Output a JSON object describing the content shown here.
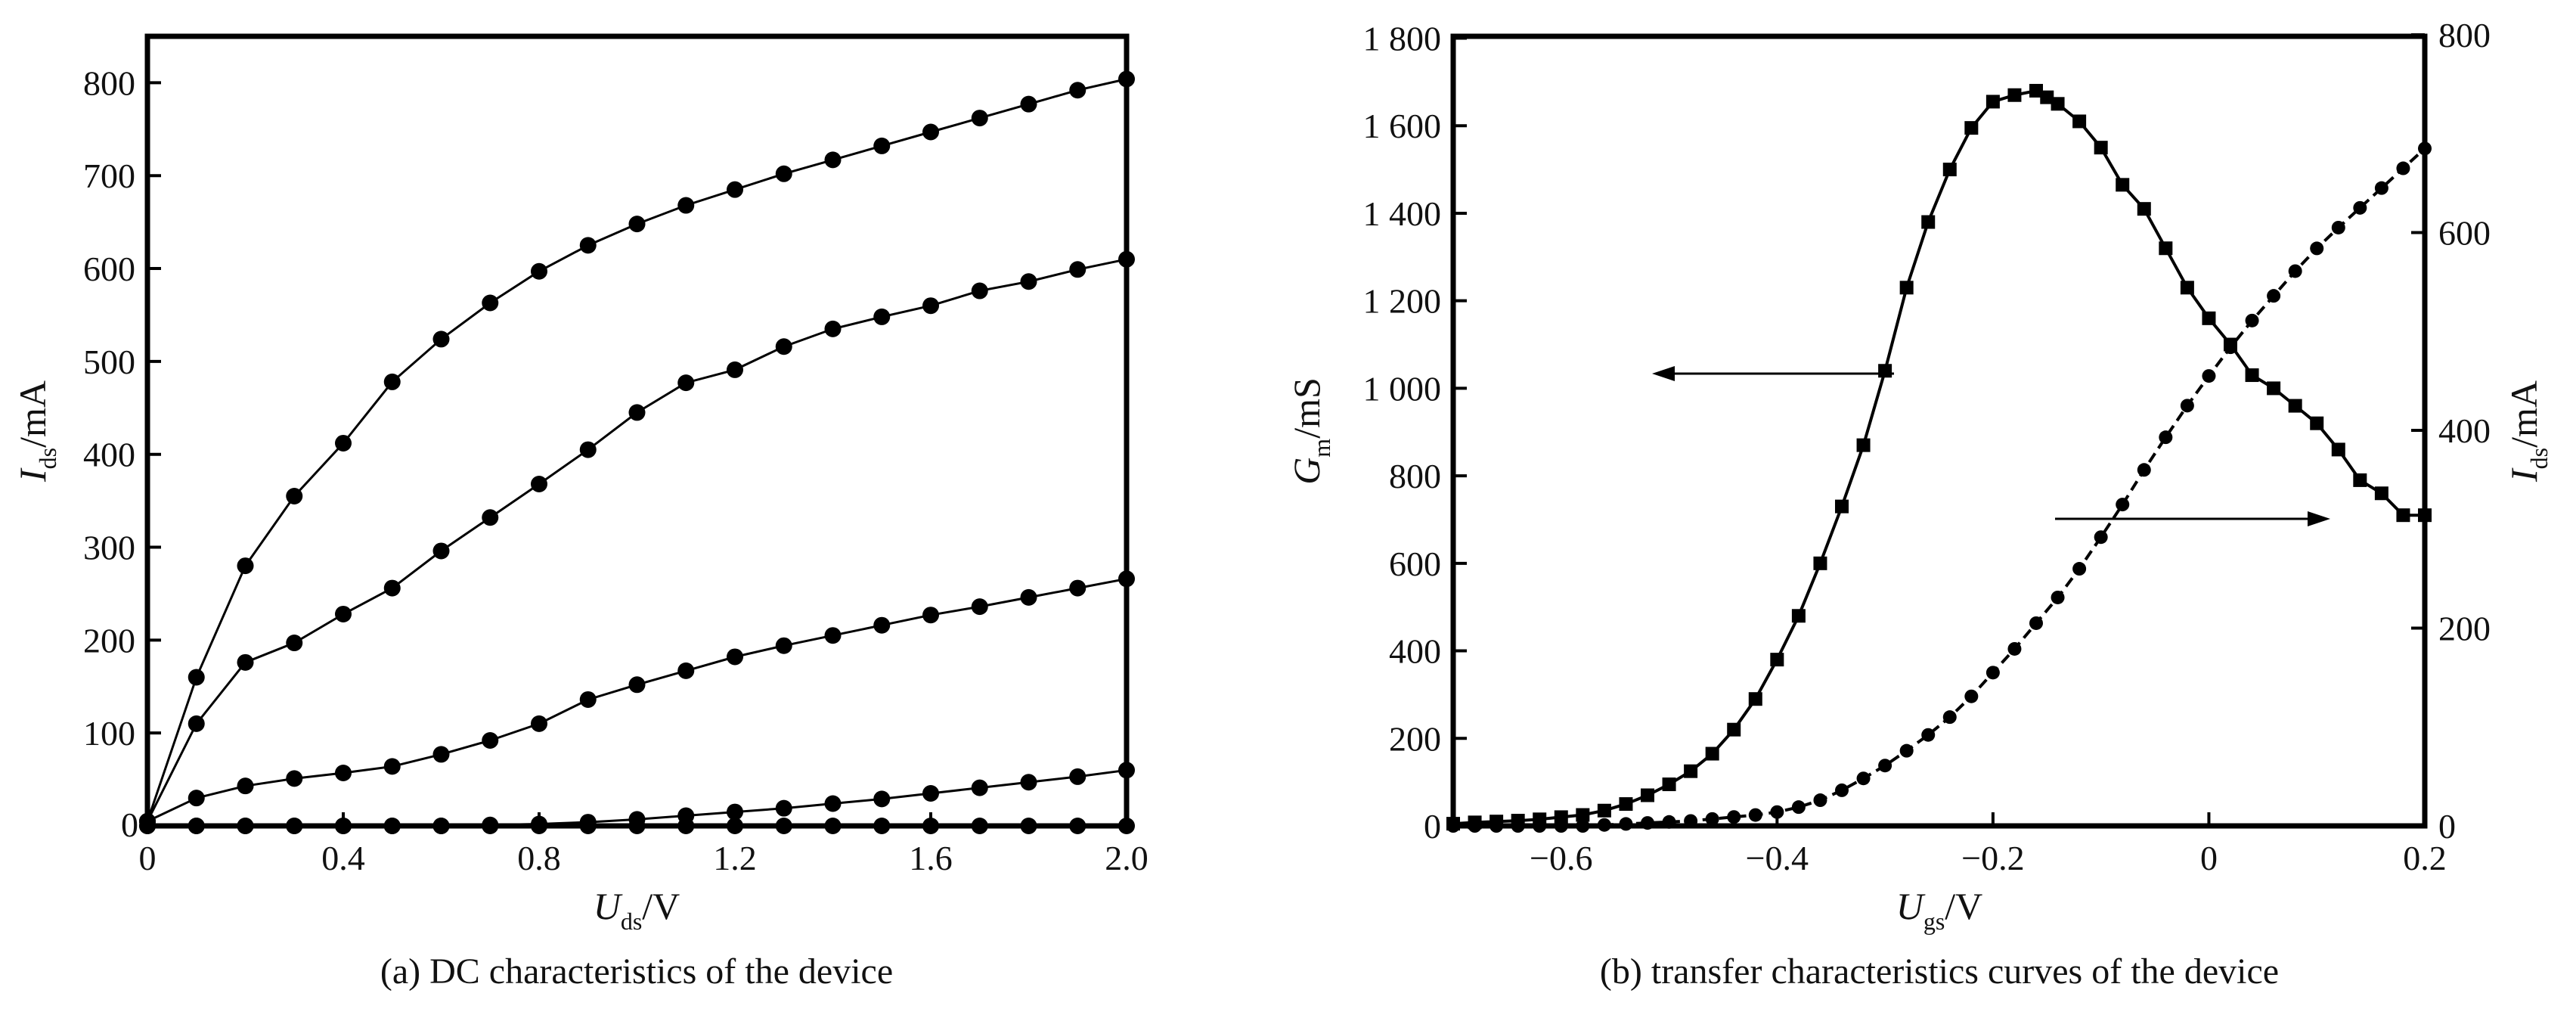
{
  "chart_data": [
    {
      "type": "line",
      "caption": "(a) DC characteristics of the device",
      "xlabel": {
        "sym": "U",
        "sub": "ds",
        "unit": "/V"
      },
      "ylabel": {
        "sym": "I",
        "sub": "ds",
        "unit": "/mA"
      },
      "xlim": [
        0,
        2.0
      ],
      "ylim": [
        0,
        850
      ],
      "xticks": [
        "0",
        "0.4",
        "0.8",
        "1.2",
        "1.6",
        "2.0"
      ],
      "xtick_values": [
        0,
        0.4,
        0.8,
        1.2,
        1.6,
        2.0
      ],
      "yticks": [
        "100",
        "200",
        "300",
        "400",
        "500",
        "600",
        "700",
        "800"
      ],
      "ytick_values": [
        100,
        200,
        300,
        400,
        500,
        600,
        700,
        800
      ],
      "y_zero_label": "0",
      "grid": false,
      "marker": "circle",
      "series": [
        {
          "x": [
            0,
            0.1,
            0.2,
            0.3,
            0.4,
            0.5,
            0.6,
            0.7,
            0.8,
            0.9,
            1.0,
            1.1,
            1.2,
            1.3,
            1.4,
            1.5,
            1.6,
            1.7,
            1.8,
            1.9,
            2.0
          ],
          "y": [
            5,
            160,
            280,
            355,
            412,
            478,
            524,
            563,
            597,
            625,
            648,
            668,
            685,
            702,
            717,
            732,
            747,
            762,
            777,
            792,
            804
          ]
        },
        {
          "x": [
            0,
            0.1,
            0.2,
            0.3,
            0.4,
            0.5,
            0.6,
            0.7,
            0.8,
            0.9,
            1.0,
            1.1,
            1.2,
            1.3,
            1.4,
            1.5,
            1.6,
            1.7,
            1.8,
            1.9,
            2.0
          ],
          "y": [
            5,
            110,
            176,
            197,
            228,
            256,
            296,
            332,
            368,
            405,
            445,
            477,
            491,
            516,
            535,
            548,
            560,
            576,
            586,
            599,
            610
          ]
        },
        {
          "x": [
            0,
            0.1,
            0.2,
            0.3,
            0.4,
            0.5,
            0.6,
            0.7,
            0.8,
            0.9,
            1.0,
            1.1,
            1.2,
            1.3,
            1.4,
            1.5,
            1.6,
            1.7,
            1.8,
            1.9,
            2.0
          ],
          "y": [
            5,
            30,
            43,
            51,
            57,
            64,
            77,
            92,
            110,
            136,
            152,
            167,
            182,
            194,
            205,
            216,
            227,
            236,
            246,
            256,
            266
          ]
        },
        {
          "x": [
            0,
            0.1,
            0.2,
            0.3,
            0.4,
            0.5,
            0.6,
            0.7,
            0.8,
            0.9,
            1.0,
            1.1,
            1.2,
            1.3,
            1.4,
            1.5,
            1.6,
            1.7,
            1.8,
            1.9,
            2.0
          ],
          "y": [
            0,
            0,
            0,
            0,
            0,
            0,
            0,
            1,
            2,
            4,
            7,
            11,
            15,
            19,
            24,
            29,
            35,
            41,
            47,
            53,
            60
          ]
        },
        {
          "x": [
            0,
            0.1,
            0.2,
            0.3,
            0.4,
            0.5,
            0.6,
            0.7,
            0.8,
            0.9,
            1.0,
            1.1,
            1.2,
            1.3,
            1.4,
            1.5,
            1.6,
            1.7,
            1.8,
            1.9,
            2.0
          ],
          "y": [
            0,
            0,
            0,
            0,
            0,
            0,
            0,
            0,
            0,
            0,
            0,
            0,
            0,
            0,
            0,
            0,
            0,
            0,
            0,
            0,
            0
          ]
        }
      ]
    },
    {
      "type": "line",
      "caption": "(b) transfer characteristics curves of the device",
      "xlabel": {
        "sym": "U",
        "sub": "gs",
        "unit": "/V"
      },
      "ylabel": {
        "sym": "G",
        "sub": "m",
        "unit": "/mS"
      },
      "y2label": {
        "sym": "I",
        "sub": "ds",
        "unit": "/mA"
      },
      "xlim": [
        -0.7,
        0.2
      ],
      "ylim": [
        0,
        1800
      ],
      "y2lim": [
        0,
        800
      ],
      "xticks": [
        "−0.6",
        "−0.4",
        "−0.2",
        "0",
        "0.2"
      ],
      "xtick_values": [
        -0.6,
        -0.4,
        -0.2,
        0,
        0.2
      ],
      "yticks": [
        "0",
        "200",
        "400",
        "600",
        "800",
        "1 000",
        "1 200",
        "1 400",
        "1 600",
        "1 800"
      ],
      "ytick_values": [
        0,
        200,
        400,
        600,
        800,
        1000,
        1200,
        1400,
        1600,
        1800
      ],
      "y2ticks": [
        "0",
        "200",
        "400",
        "600",
        "800"
      ],
      "y2tick_values": [
        0,
        200,
        400,
        600,
        800
      ],
      "grid": false,
      "series": [
        {
          "axis": "left",
          "marker": "square",
          "line": "solid",
          "x": [
            -0.7,
            -0.68,
            -0.66,
            -0.64,
            -0.62,
            -0.6,
            -0.58,
            -0.56,
            -0.54,
            -0.52,
            -0.5,
            -0.48,
            -0.46,
            -0.44,
            -0.42,
            -0.4,
            -0.38,
            -0.36,
            -0.34,
            -0.32,
            -0.3,
            -0.28,
            -0.26,
            -0.24,
            -0.22,
            -0.2,
            -0.18,
            -0.16,
            -0.15,
            -0.14,
            -0.12,
            -0.1,
            -0.08,
            -0.06,
            -0.04,
            -0.02,
            0,
            0.02,
            0.04,
            0.06,
            0.08,
            0.1,
            0.12,
            0.14,
            0.16,
            0.18,
            0.2
          ],
          "y": [
            5,
            8,
            10,
            12,
            15,
            20,
            25,
            35,
            50,
            70,
            95,
            125,
            165,
            220,
            290,
            380,
            480,
            600,
            730,
            870,
            1040,
            1230,
            1380,
            1500,
            1595,
            1655,
            1670,
            1680,
            1665,
            1650,
            1610,
            1550,
            1465,
            1410,
            1320,
            1230,
            1160,
            1100,
            1030,
            1000,
            960,
            920,
            860,
            790,
            760,
            710,
            710
          ]
        },
        {
          "axis": "right",
          "marker": "circle",
          "line": "dashed",
          "x": [
            -0.7,
            -0.68,
            -0.66,
            -0.64,
            -0.62,
            -0.6,
            -0.58,
            -0.56,
            -0.54,
            -0.52,
            -0.5,
            -0.48,
            -0.46,
            -0.44,
            -0.42,
            -0.4,
            -0.38,
            -0.36,
            -0.34,
            -0.32,
            -0.3,
            -0.28,
            -0.26,
            -0.24,
            -0.22,
            -0.2,
            -0.18,
            -0.16,
            -0.14,
            -0.12,
            -0.1,
            -0.08,
            -0.06,
            -0.04,
            -0.02,
            0,
            0.02,
            0.04,
            0.06,
            0.08,
            0.1,
            0.12,
            0.14,
            0.16,
            0.18,
            0.2
          ],
          "y": [
            0,
            0,
            0,
            0,
            0,
            0,
            0,
            1,
            2,
            3,
            4,
            5,
            7,
            9,
            11,
            14,
            19,
            26,
            36,
            48,
            61,
            76,
            92,
            110,
            131,
            155,
            179,
            205,
            231,
            260,
            292,
            325,
            360,
            393,
            425,
            455,
            484,
            511,
            536,
            561,
            584,
            605,
            625,
            645,
            665,
            685
          ]
        }
      ]
    }
  ]
}
